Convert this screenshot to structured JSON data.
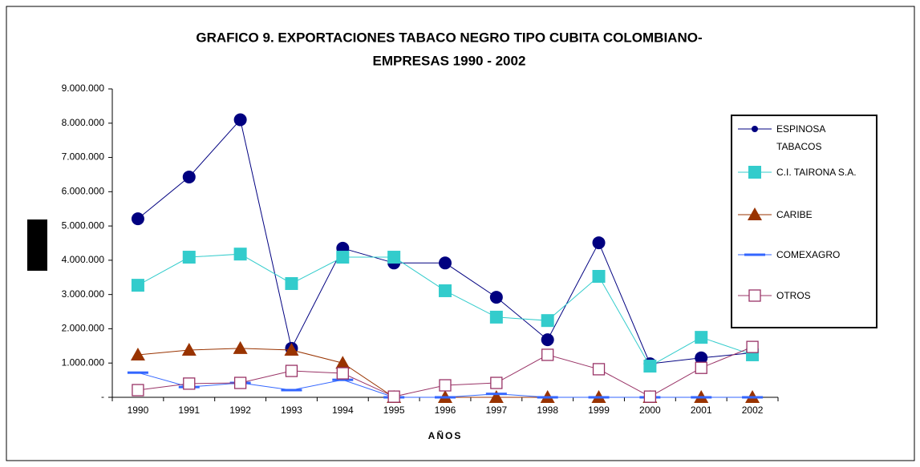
{
  "chart_data": {
    "type": "line",
    "title": [
      "GRAFICO 9.  EXPORTACIONES TABACO NEGRO TIPO CUBITA COLOMBIANO-",
      "EMPRESAS  1990 - 2002"
    ],
    "x_label": "AÑOS",
    "categories": [
      "1990",
      "1991",
      "1992",
      "1993",
      "1994",
      "1995",
      "1996",
      "1997",
      "1998",
      "1999",
      "2000",
      "2001",
      "2002"
    ],
    "ylim": [
      0,
      9000000
    ],
    "yticks": [
      {
        "value": 0,
        "label": "-"
      },
      {
        "value": 1000000,
        "label": "1.000.000"
      },
      {
        "value": 2000000,
        "label": "2.000.000"
      },
      {
        "value": 3000000,
        "label": "3.000.000"
      },
      {
        "value": 4000000,
        "label": "4.000.000"
      },
      {
        "value": 5000000,
        "label": "5.000.000"
      },
      {
        "value": 6000000,
        "label": "6.000.000"
      },
      {
        "value": 7000000,
        "label": "7.000.000"
      },
      {
        "value": 8000000,
        "label": "8.000.000"
      },
      {
        "value": 9000000,
        "label": "9.000.000"
      }
    ],
    "series": [
      {
        "name": "ESPINOSA TABACOS",
        "color": "#000080",
        "marker": "circle",
        "values": [
          5210000,
          6430000,
          8100000,
          1430000,
          4350000,
          3920000,
          3920000,
          2920000,
          1680000,
          4510000,
          980000,
          1150000,
          1300000
        ]
      },
      {
        "name": "C.I. TAIRONA S.A.",
        "color": "#33cccc",
        "marker": "square",
        "values": [
          3270000,
          4090000,
          4180000,
          3320000,
          4090000,
          4090000,
          3110000,
          2340000,
          2240000,
          3530000,
          910000,
          1750000,
          1240000
        ]
      },
      {
        "name": "CARIBE",
        "color": "#993300",
        "marker": "triangle",
        "values": [
          1240000,
          1380000,
          1430000,
          1380000,
          1000000,
          0,
          0,
          0,
          0,
          0,
          0,
          0,
          0
        ]
      },
      {
        "name": "COMEXAGRO",
        "color": "#3366ff",
        "marker": "dash",
        "values": [
          720000,
          300000,
          420000,
          210000,
          510000,
          0,
          0,
          100000,
          0,
          0,
          0,
          0,
          0
        ]
      },
      {
        "name": "OTROS",
        "color": "#993366",
        "marker": "hollow-square",
        "values": [
          210000,
          400000,
          420000,
          770000,
          700000,
          20000,
          350000,
          420000,
          1240000,
          820000,
          20000,
          860000,
          1470000
        ]
      }
    ]
  }
}
